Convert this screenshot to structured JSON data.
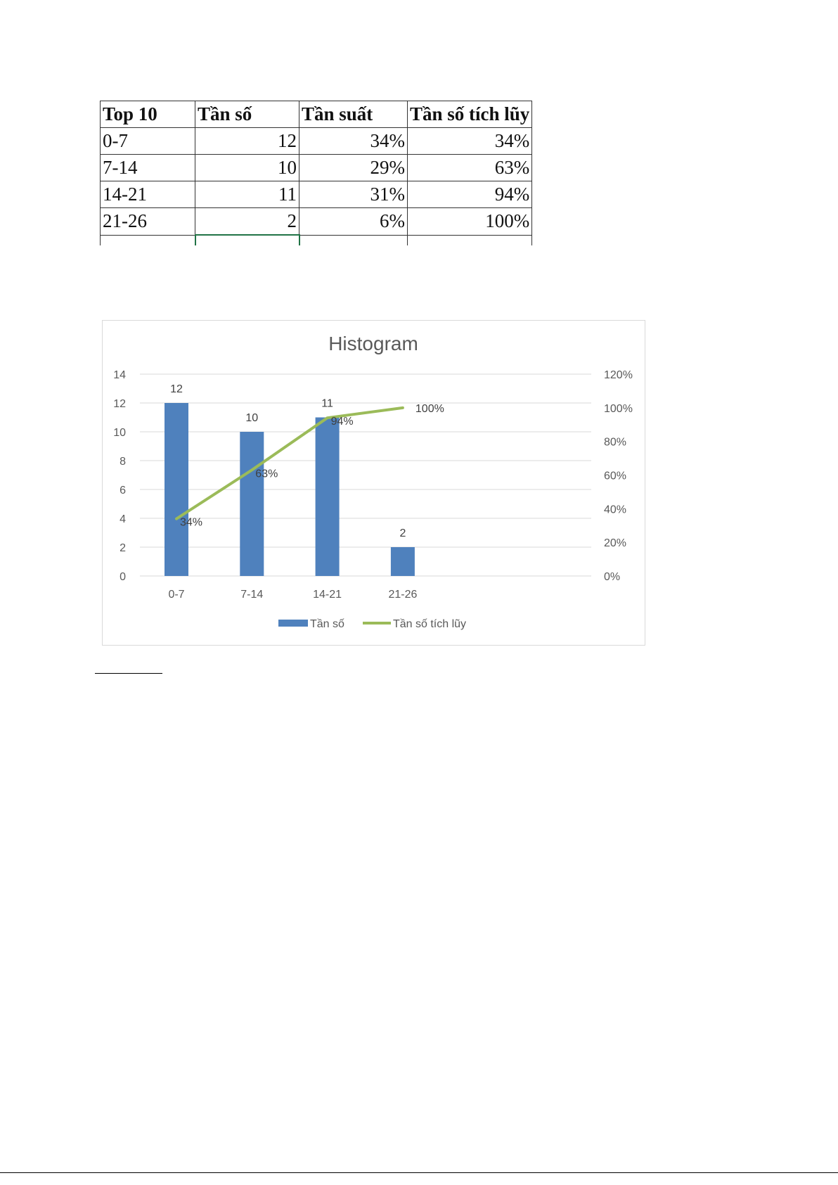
{
  "table": {
    "headers": [
      "Top 10",
      "Tần số",
      "Tần suất",
      "Tần số tích lũy"
    ],
    "rows": [
      [
        "0-7",
        "12",
        "34%",
        "34%"
      ],
      [
        "7-14",
        "10",
        "29%",
        "63%"
      ],
      [
        "14-21",
        "11",
        "31%",
        "94%"
      ],
      [
        "21-26",
        "2",
        "6%",
        "100%"
      ]
    ]
  },
  "chart_data": {
    "type": "bar",
    "title": "Histogram",
    "categories": [
      "0-7",
      "7-14",
      "14-21",
      "21-26"
    ],
    "series": [
      {
        "name": "Tần số",
        "type": "bar",
        "axis": "left",
        "values": [
          12,
          10,
          11,
          2
        ],
        "labels": [
          "12",
          "10",
          "11",
          "2"
        ],
        "color": "#4f81bd"
      },
      {
        "name": "Tần số tích lũy",
        "type": "line",
        "axis": "right",
        "values": [
          34,
          63,
          94,
          100
        ],
        "labels": [
          "34%",
          "63%",
          "94%",
          "100%"
        ],
        "color": "#9bbb59"
      }
    ],
    "y_left": {
      "range": [
        0,
        14
      ],
      "ticks": [
        "0",
        "2",
        "4",
        "6",
        "8",
        "10",
        "12",
        "14"
      ]
    },
    "y_right": {
      "range": [
        0,
        120
      ],
      "ticks": [
        "0%",
        "20%",
        "40%",
        "60%",
        "80%",
        "100%",
        "120%"
      ]
    },
    "grid": true,
    "legend": "bottom"
  }
}
